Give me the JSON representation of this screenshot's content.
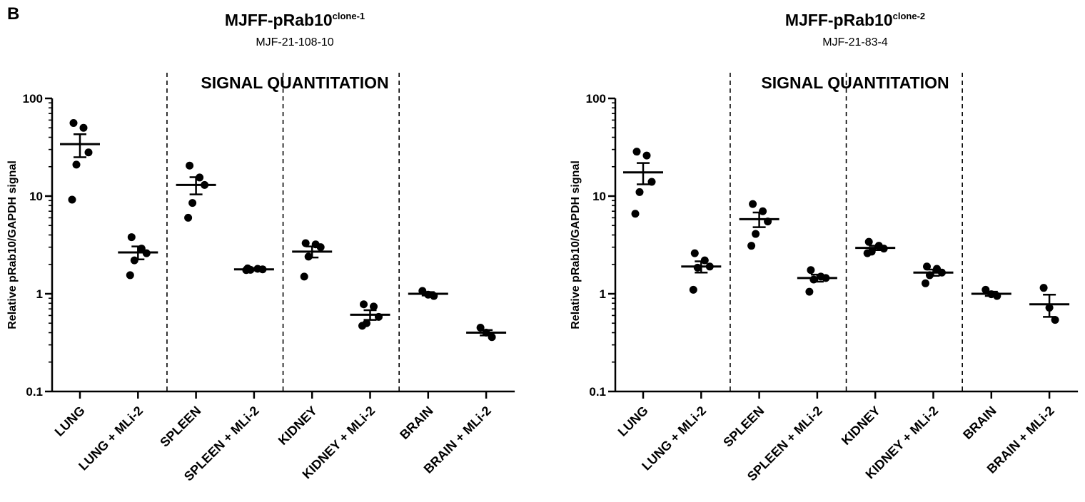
{
  "panel_label": "B",
  "chart_data": [
    {
      "type": "scatter",
      "title": "MJFF-pRab10",
      "title_superscript": "clone-1",
      "subtitle": "MJF-21-108-10",
      "heading": "SIGNAL QUANTITATION",
      "xlabel": "",
      "ylabel": "Relative pRab10/GAPDH signal",
      "yscale": "log",
      "ylim": [
        0.1,
        100
      ],
      "yticks": [
        "0.1",
        "1",
        "10",
        "100"
      ],
      "categories": [
        "LUNG",
        "LUNG + MLi-2",
        "SPLEEN",
        "SPLEEN + MLi-2",
        "KIDNEY",
        "KIDNEY + MLi-2",
        "BRAIN",
        "BRAIN + MLi-2"
      ],
      "points": [
        [
          56,
          50,
          28,
          21,
          9.2
        ],
        [
          3.8,
          2.9,
          2.6,
          2.2,
          1.55
        ],
        [
          20.5,
          15.5,
          13,
          8.5,
          6.0
        ],
        [
          1.82,
          1.8,
          1.78,
          1.76,
          1.75
        ],
        [
          3.3,
          3.2,
          3.0,
          2.4,
          1.5
        ],
        [
          0.78,
          0.74,
          0.58,
          0.5,
          0.47
        ],
        [
          1.07,
          0.98,
          0.95
        ],
        [
          0.45,
          0.4,
          0.36
        ]
      ],
      "mean": [
        34,
        2.65,
        13,
        1.78,
        2.7,
        0.61,
        1.0,
        0.4
      ],
      "sem": [
        9,
        0.4,
        2.6,
        0.05,
        0.35,
        0.07,
        0.04,
        0.025
      ],
      "separators_after": [
        2,
        4,
        6
      ],
      "grid": false,
      "legend": "none"
    },
    {
      "type": "scatter",
      "title": "MJFF-pRab10",
      "title_superscript": "clone-2",
      "subtitle": "MJF-21-83-4",
      "heading": "SIGNAL QUANTITATION",
      "xlabel": "",
      "ylabel": "Relative pRab10/GAPDH signal",
      "yscale": "log",
      "ylim": [
        0.1,
        100
      ],
      "yticks": [
        "0.1",
        "1",
        "10",
        "100"
      ],
      "categories": [
        "LUNG",
        "LUNG + MLi-2",
        "SPLEEN",
        "SPLEEN + MLi-2",
        "KIDNEY",
        "KIDNEY + MLi-2",
        "BRAIN",
        "BRAIN + MLi-2"
      ],
      "points": [
        [
          28.5,
          26,
          14,
          11,
          6.6
        ],
        [
          2.6,
          2.2,
          1.9,
          1.85,
          1.1
        ],
        [
          8.3,
          7.0,
          5.5,
          4.1,
          3.1
        ],
        [
          1.75,
          1.5,
          1.45,
          1.4,
          1.05
        ],
        [
          3.4,
          3.1,
          2.9,
          2.7,
          2.6
        ],
        [
          1.9,
          1.8,
          1.65,
          1.55,
          1.28
        ],
        [
          1.1,
          0.99,
          0.95
        ],
        [
          1.15,
          0.72,
          0.54
        ]
      ],
      "mean": [
        17.5,
        1.9,
        5.8,
        1.45,
        2.95,
        1.65,
        1.0,
        0.78
      ],
      "sem": [
        4.3,
        0.25,
        1.0,
        0.12,
        0.15,
        0.12,
        0.05,
        0.2
      ],
      "separators_after": [
        2,
        4,
        6
      ],
      "grid": false,
      "legend": "none"
    }
  ]
}
